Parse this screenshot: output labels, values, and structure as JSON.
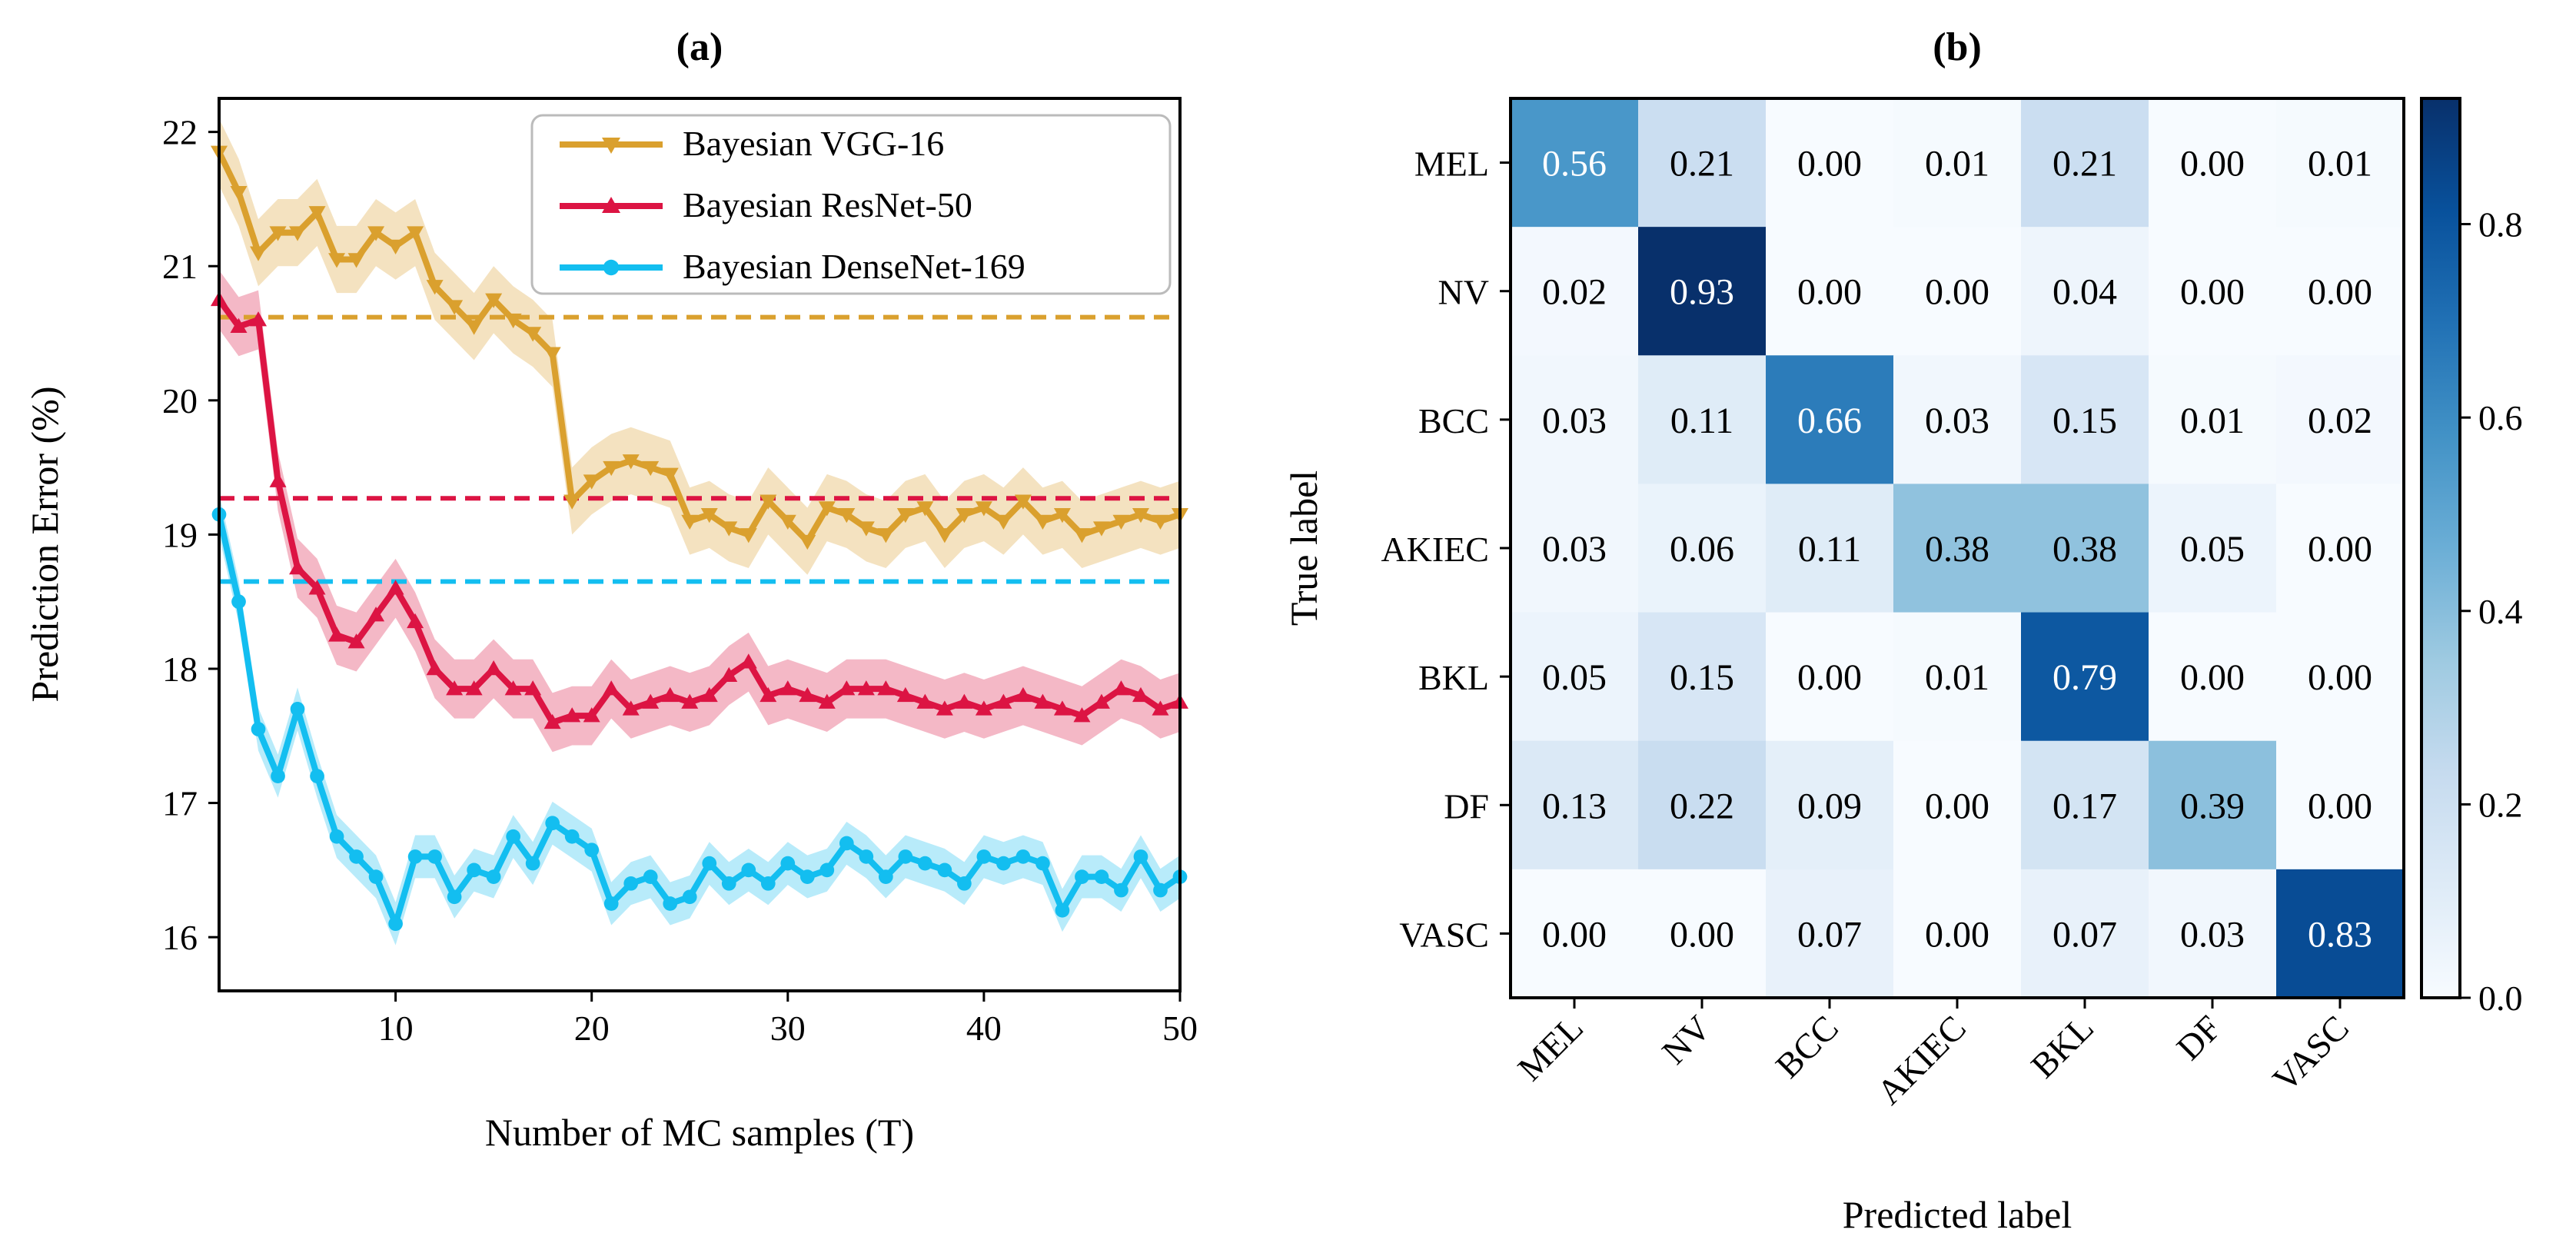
{
  "chart_data": [
    {
      "type": "line",
      "title": "(a)",
      "xlabel": "Number of MC samples (T)",
      "ylabel": "Prediction Error (%)",
      "xlim": [
        1,
        50
      ],
      "ylim": [
        15.6,
        22.25
      ],
      "xticks": [
        10,
        20,
        30,
        40,
        50
      ],
      "yticks": [
        16,
        17,
        18,
        19,
        20,
        21,
        22
      ],
      "grid": false,
      "legend_position": "top-right",
      "x": [
        1,
        2,
        3,
        4,
        5,
        6,
        7,
        8,
        9,
        10,
        11,
        12,
        13,
        14,
        15,
        16,
        17,
        18,
        19,
        20,
        21,
        22,
        23,
        24,
        25,
        26,
        27,
        28,
        29,
        30,
        31,
        32,
        33,
        34,
        35,
        36,
        37,
        38,
        39,
        40,
        41,
        42,
        43,
        44,
        45,
        46,
        47,
        48,
        49,
        50
      ],
      "series": [
        {
          "name": "Bayesian VGG-16",
          "color": "#DAA02E",
          "marker": "triangle-down",
          "baseline": 20.62,
          "band": 0.25,
          "values": [
            21.85,
            21.55,
            21.1,
            21.25,
            21.25,
            21.4,
            21.05,
            21.05,
            21.25,
            21.15,
            21.25,
            20.85,
            20.7,
            20.55,
            20.75,
            20.6,
            20.5,
            20.35,
            19.25,
            19.4,
            19.5,
            19.55,
            19.5,
            19.45,
            19.1,
            19.15,
            19.05,
            19.0,
            19.25,
            19.1,
            18.95,
            19.2,
            19.15,
            19.05,
            19.0,
            19.15,
            19.2,
            19.0,
            19.15,
            19.2,
            19.1,
            19.25,
            19.1,
            19.15,
            19.0,
            19.05,
            19.1,
            19.15,
            19.1,
            19.15
          ]
        },
        {
          "name": "Bayesian ResNet-50",
          "color": "#DC1443",
          "marker": "triangle-up",
          "baseline": 19.27,
          "band": 0.22,
          "values": [
            20.75,
            20.55,
            20.6,
            19.4,
            18.75,
            18.6,
            18.25,
            18.2,
            18.4,
            18.6,
            18.35,
            18.0,
            17.85,
            17.85,
            18.0,
            17.85,
            17.85,
            17.6,
            17.65,
            17.65,
            17.85,
            17.7,
            17.75,
            17.8,
            17.75,
            17.8,
            17.95,
            18.05,
            17.8,
            17.85,
            17.8,
            17.75,
            17.85,
            17.85,
            17.85,
            17.8,
            17.75,
            17.7,
            17.75,
            17.7,
            17.75,
            17.8,
            17.75,
            17.7,
            17.65,
            17.75,
            17.85,
            17.8,
            17.7,
            17.75
          ]
        },
        {
          "name": "Bayesian DenseNet-169",
          "color": "#13BEF0",
          "marker": "circle",
          "baseline": 18.65,
          "band": 0.16,
          "values": [
            19.15,
            18.5,
            17.55,
            17.2,
            17.7,
            17.2,
            16.75,
            16.6,
            16.45,
            16.1,
            16.6,
            16.6,
            16.3,
            16.5,
            16.45,
            16.75,
            16.55,
            16.85,
            16.75,
            16.65,
            16.25,
            16.4,
            16.45,
            16.25,
            16.3,
            16.55,
            16.4,
            16.5,
            16.4,
            16.55,
            16.45,
            16.5,
            16.7,
            16.6,
            16.45,
            16.6,
            16.55,
            16.5,
            16.4,
            16.6,
            16.55,
            16.6,
            16.55,
            16.2,
            16.45,
            16.45,
            16.35,
            16.6,
            16.35,
            16.45
          ]
        }
      ]
    },
    {
      "type": "heatmap",
      "title": "(b)",
      "xlabel": "Predicted label",
      "ylabel": "True label",
      "row_labels": [
        "MEL",
        "NV",
        "BCC",
        "AKIEC",
        "BKL",
        "DF",
        "VASC"
      ],
      "col_labels": [
        "MEL",
        "NV",
        "BCC",
        "AKIEC",
        "BKL",
        "DF",
        "VASC"
      ],
      "values": [
        [
          "0.56",
          "0.21",
          "0.00",
          "0.01",
          "0.21",
          "0.00",
          "0.01"
        ],
        [
          "0.02",
          "0.93",
          "0.00",
          "0.00",
          "0.04",
          "0.00",
          "0.00"
        ],
        [
          "0.03",
          "0.11",
          "0.66",
          "0.03",
          "0.15",
          "0.01",
          "0.02"
        ],
        [
          "0.03",
          "0.06",
          "0.11",
          "0.38",
          "0.38",
          "0.05",
          "0.00"
        ],
        [
          "0.05",
          "0.15",
          "0.00",
          "0.01",
          "0.79",
          "0.00",
          "0.00"
        ],
        [
          "0.13",
          "0.22",
          "0.09",
          "0.00",
          "0.17",
          "0.39",
          "0.00"
        ],
        [
          "0.00",
          "0.00",
          "0.07",
          "0.00",
          "0.07",
          "0.03",
          "0.83"
        ]
      ],
      "colorbar": {
        "min": 0.0,
        "max": 0.93,
        "ticks": [
          "0.0",
          "0.2",
          "0.4",
          "0.6",
          "0.8"
        ],
        "colormap": "Blues"
      }
    }
  ]
}
